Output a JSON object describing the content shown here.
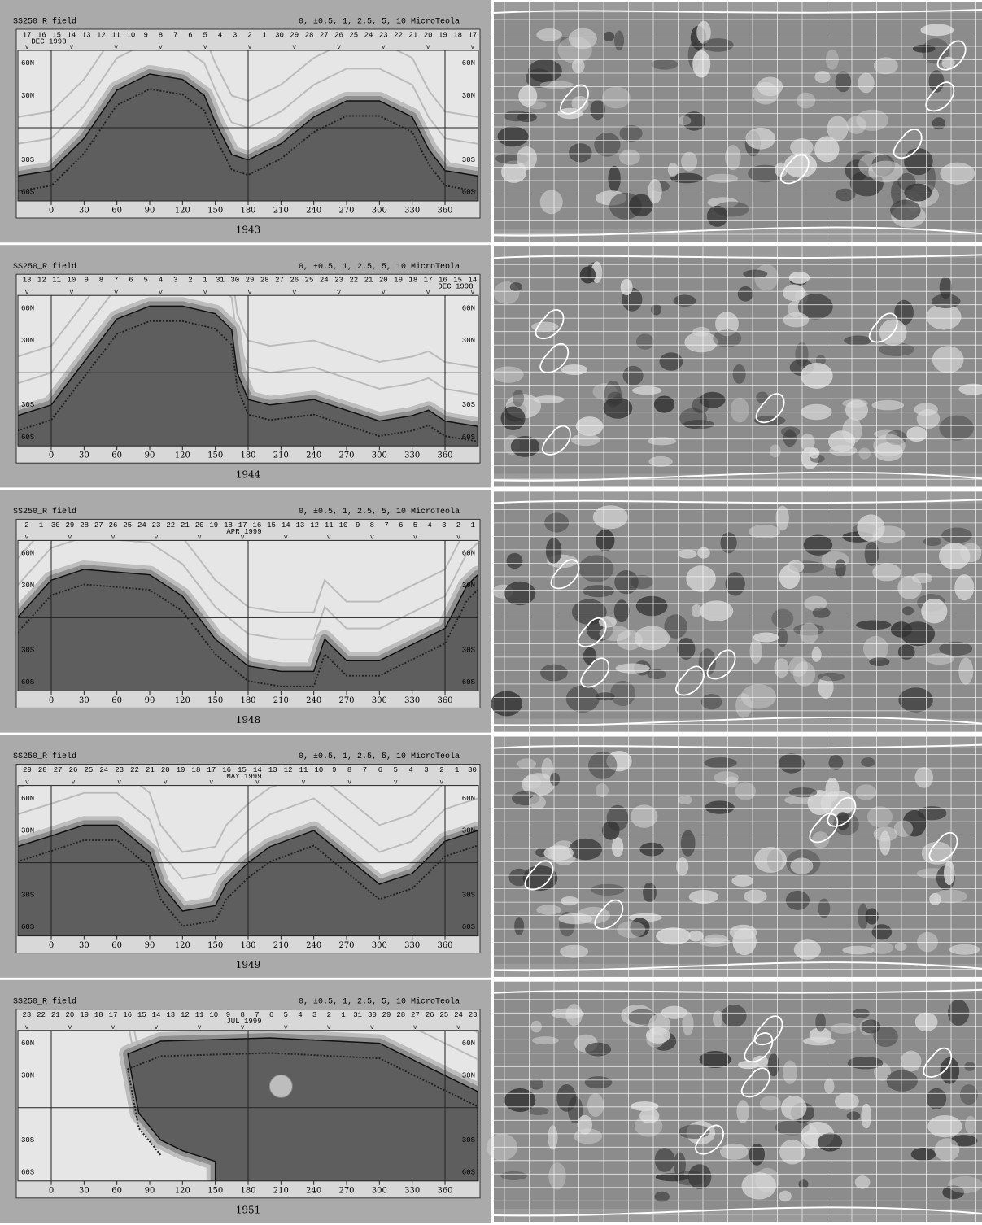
{
  "panels": [
    {
      "title": "SS250_R field",
      "levels": "0, ±0.5, 1, 2.5, 5, 10 MicroTeola",
      "date": "DEC 1998",
      "year": "1943",
      "days": [
        "17",
        "16",
        "15",
        "14",
        "13",
        "12",
        "11",
        "10",
        "9",
        "8",
        "7",
        "6",
        "5",
        "4",
        "3",
        "2",
        "1",
        "30",
        "29",
        "28",
        "27",
        "26",
        "25",
        "24",
        "23",
        "22",
        "21",
        "20",
        "19",
        "18",
        "17"
      ]
    },
    {
      "title": "SS250_R field",
      "levels": "0, ±0.5, 1, 2.5, 5, 10 MicroTeola",
      "date": "DEC 1998",
      "year": "1944",
      "days": [
        "13",
        "12",
        "11",
        "10",
        "9",
        "8",
        "7",
        "6",
        "5",
        "4",
        "3",
        "2",
        "1",
        "31",
        "30",
        "29",
        "28",
        "27",
        "26",
        "25",
        "24",
        "23",
        "22",
        "21",
        "20",
        "19",
        "18",
        "17",
        "16",
        "15",
        "14"
      ]
    },
    {
      "title": "SS250_R field",
      "levels": "0, ±0.5, 1, 2.5, 5, 10 MicroTeola",
      "date": "APR 1999",
      "year": "1948",
      "days": [
        "2",
        "1",
        "30",
        "29",
        "28",
        "27",
        "26",
        "25",
        "24",
        "23",
        "22",
        "21",
        "20",
        "19",
        "18",
        "17",
        "16",
        "15",
        "14",
        "13",
        "12",
        "11",
        "10",
        "9",
        "8",
        "7",
        "6",
        "5",
        "4",
        "3",
        "2",
        "1"
      ]
    },
    {
      "title": "SS250_R field",
      "levels": "0, ±0.5, 1, 2.5, 5, 10 MicroTeola",
      "date": "MAY 1999",
      "year": "1949",
      "days": [
        "29",
        "28",
        "27",
        "26",
        "25",
        "24",
        "23",
        "22",
        "21",
        "20",
        "19",
        "18",
        "17",
        "16",
        "15",
        "14",
        "13",
        "12",
        "11",
        "10",
        "9",
        "8",
        "7",
        "6",
        "5",
        "4",
        "3",
        "2",
        "1",
        "30"
      ]
    },
    {
      "title": "SS250_R field",
      "levels": "0, ±0.5, 1, 2.5, 5, 10 MicroTeola",
      "date": "JUL 1999",
      "year": "1951",
      "days": [
        "23",
        "22",
        "21",
        "20",
        "19",
        "18",
        "17",
        "16",
        "15",
        "14",
        "13",
        "12",
        "11",
        "10",
        "9",
        "8",
        "7",
        "6",
        "5",
        "4",
        "3",
        "2",
        "1",
        "31",
        "30",
        "29",
        "28",
        "27",
        "26",
        "25",
        "24",
        "23"
      ]
    }
  ],
  "x_ticks": [
    "0",
    "30",
    "60",
    "90",
    "120",
    "150",
    "180",
    "210",
    "240",
    "270",
    "300",
    "330",
    "360"
  ],
  "lat_labels": [
    "60N",
    "30N",
    "30S",
    "60S"
  ]
}
